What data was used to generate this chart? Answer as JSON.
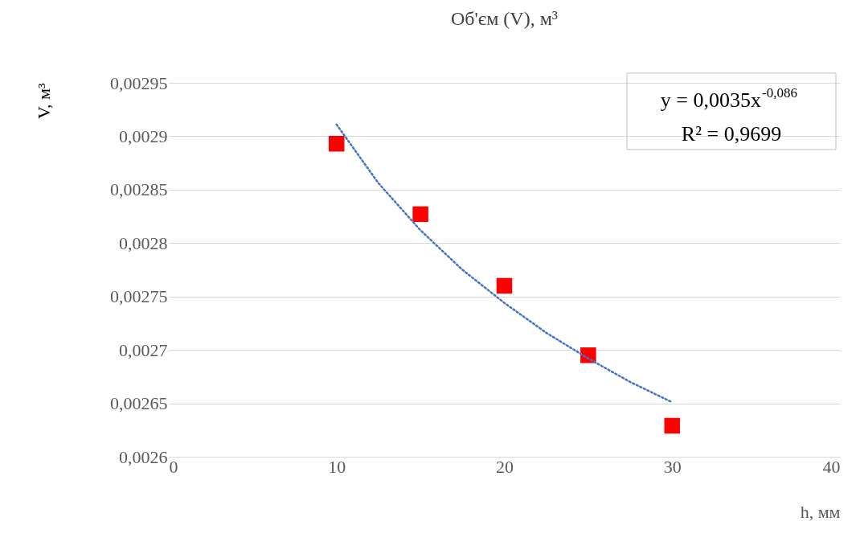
{
  "chart_data": {
    "type": "scatter",
    "title": "Об'єм (V), м³",
    "xlabel": "h, мм",
    "ylabel": "V, м³",
    "xlim": [
      0,
      40
    ],
    "xticks": [
      0,
      10,
      20,
      30,
      40
    ],
    "ylim": [
      0.0026,
      0.00295
    ],
    "yticks": [
      {
        "value": 0.0026,
        "label": "0,0026"
      },
      {
        "value": 0.00265,
        "label": "0,00265"
      },
      {
        "value": 0.0027,
        "label": "0,0027"
      },
      {
        "value": 0.00275,
        "label": "0,00275"
      },
      {
        "value": 0.0028,
        "label": "0,0028"
      },
      {
        "value": 0.00285,
        "label": "0,00285"
      },
      {
        "value": 0.0029,
        "label": "0,0029"
      },
      {
        "value": 0.00295,
        "label": "0,00295"
      }
    ],
    "grid": "y",
    "series": [
      {
        "marker": "square",
        "color": "#ff0000",
        "x": [
          10,
          15,
          20,
          25,
          30
        ],
        "values": [
          0.002893,
          0.002827,
          0.00276,
          0.002695,
          0.002629
        ]
      },
      {
        "type": "line",
        "line_style": "dotted",
        "color": "#4472c4",
        "x": [
          10,
          12.5,
          15,
          17.5,
          20,
          22.5,
          25,
          27.5,
          30
        ],
        "values": [
          0.002911,
          0.002856,
          0.002812,
          0.002775,
          0.002744,
          0.002716,
          0.002692,
          0.00267,
          0.002651
        ]
      }
    ],
    "annotations": [
      "y = 0,0035x$^{-0,086}$",
      "R² = 0,9699"
    ]
  }
}
